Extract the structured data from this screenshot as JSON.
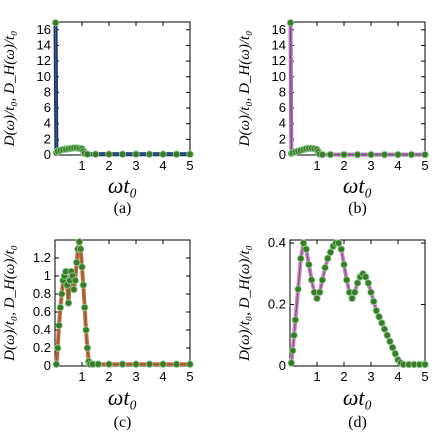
{
  "chart_data": [
    {
      "type": "scatter",
      "caption": "(a)",
      "ylabel": "D(ω)/t₀, D_H(ω)/t₀",
      "xlabel": "ωt₀",
      "xlim": [
        0,
        5
      ],
      "ylim": [
        0,
        17
      ],
      "xticks": [
        "1",
        "2",
        "3",
        "4",
        "5"
      ],
      "yticks": [
        "0",
        "2",
        "4",
        "6",
        "8",
        "10",
        "12",
        "14",
        "16"
      ],
      "ytick_values": [
        0,
        2,
        4,
        6,
        8,
        10,
        12,
        14,
        16
      ],
      "colors": {
        "line": "#1a2a8a",
        "marker": "#3a7a2a"
      },
      "series": [
        {
          "x": [
            0.02,
            0.05,
            0.1,
            0.2,
            0.3,
            0.4,
            0.5,
            0.6,
            0.7,
            0.8,
            0.9,
            1.0,
            1.05,
            1.1,
            1.2,
            1.5,
            2.0,
            2.5,
            3.0,
            3.5,
            4.0,
            4.5,
            5.0
          ],
          "y": [
            16.9,
            0.3,
            0.5,
            0.6,
            0.7,
            0.75,
            0.8,
            0.85,
            0.9,
            0.9,
            0.85,
            0.8,
            0.5,
            0.2,
            0.1,
            0.1,
            0.1,
            0.1,
            0.1,
            0.1,
            0.1,
            0.1,
            0.1
          ]
        }
      ]
    },
    {
      "type": "scatter",
      "caption": "(b)",
      "ylabel": "D(ω)/t₀, D_H(ω)/t₀",
      "xlabel": "ωt₀",
      "xlim": [
        0,
        5
      ],
      "ylim": [
        0,
        17
      ],
      "xticks": [
        "1",
        "2",
        "3",
        "4",
        "5"
      ],
      "yticks": [
        "0",
        "2",
        "4",
        "6",
        "8",
        "10",
        "12",
        "14",
        "16"
      ],
      "ytick_values": [
        0,
        2,
        4,
        6,
        8,
        10,
        12,
        14,
        16
      ],
      "colors": {
        "line": "#c060d0",
        "marker": "#3a7a2a"
      },
      "series": [
        {
          "x": [
            0.02,
            0.05,
            0.1,
            0.2,
            0.3,
            0.4,
            0.5,
            0.6,
            0.7,
            0.8,
            0.9,
            1.0,
            1.05,
            1.1,
            1.2,
            1.5,
            2.0,
            2.5,
            3.0,
            3.5,
            4.0,
            4.5,
            5.0
          ],
          "y": [
            16.9,
            0.2,
            0.3,
            0.4,
            0.5,
            0.6,
            0.7,
            0.8,
            0.85,
            0.85,
            0.8,
            0.7,
            0.4,
            0.1,
            0.05,
            0.05,
            0.05,
            0.05,
            0.05,
            0.05,
            0.05,
            0.05,
            0.05
          ]
        }
      ]
    },
    {
      "type": "scatter",
      "caption": "(c)",
      "ylabel": "D(ω)/t₀, D_H(ω)/t₀",
      "xlabel": "ωt₀",
      "xlim": [
        0,
        5
      ],
      "ylim": [
        0,
        1.4
      ],
      "xticks": [
        "1",
        "2",
        "3",
        "4",
        "5"
      ],
      "yticks": [
        "0",
        "0.2",
        "0.4",
        "0.6",
        "0.8",
        "1",
        "1.2"
      ],
      "ytick_values": [
        0,
        0.2,
        0.4,
        0.6,
        0.8,
        1.0,
        1.2
      ],
      "colors": {
        "line": "#e06040",
        "marker": "#3a7a2a"
      },
      "series": [
        {
          "x": [
            0.05,
            0.1,
            0.15,
            0.2,
            0.25,
            0.3,
            0.35,
            0.4,
            0.45,
            0.5,
            0.55,
            0.6,
            0.65,
            0.7,
            0.75,
            0.8,
            0.85,
            0.9,
            0.95,
            1.0,
            1.05,
            1.1,
            1.15,
            1.2,
            1.25,
            1.3,
            1.4,
            1.6,
            2.0,
            2.5,
            3.0,
            3.5,
            4.0,
            4.5,
            5.0
          ],
          "y": [
            0.02,
            0.2,
            0.45,
            0.65,
            0.8,
            0.95,
            1.0,
            1.05,
            0.9,
            0.7,
            0.95,
            1.05,
            1.0,
            0.85,
            0.95,
            1.15,
            1.3,
            1.38,
            1.3,
            1.1,
            0.9,
            0.65,
            0.4,
            0.2,
            0.05,
            0.02,
            0.02,
            0.02,
            0.02,
            0.02,
            0.02,
            0.02,
            0.02,
            0.02,
            0.02
          ]
        }
      ]
    },
    {
      "type": "scatter",
      "caption": "(d)",
      "ylabel": "D(ω)/t₀, D_H(ω)/t₀",
      "xlabel": "ωt₀",
      "xlim": [
        0,
        5
      ],
      "ylim": [
        0,
        0.41
      ],
      "xticks": [
        "1",
        "2",
        "3",
        "4",
        "5"
      ],
      "yticks": [
        "0",
        "0.2",
        "0.4"
      ],
      "ytick_values": [
        0,
        0.2,
        0.4
      ],
      "colors": {
        "line": "#e070e0",
        "marker": "#3a7a2a"
      },
      "series": [
        {
          "x": [
            0.05,
            0.1,
            0.15,
            0.2,
            0.3,
            0.4,
            0.5,
            0.6,
            0.7,
            0.8,
            0.9,
            1.0,
            1.1,
            1.2,
            1.3,
            1.4,
            1.5,
            1.6,
            1.7,
            1.8,
            1.9,
            2.0,
            2.1,
            2.2,
            2.3,
            2.4,
            2.5,
            2.6,
            2.7,
            2.8,
            2.9,
            3.0,
            3.1,
            3.2,
            3.3,
            3.4,
            3.5,
            3.6,
            3.7,
            3.8,
            3.9,
            4.0,
            4.1,
            4.2,
            4.4,
            4.6,
            4.8,
            5.0
          ],
          "y": [
            0.01,
            0.05,
            0.1,
            0.15,
            0.25,
            0.35,
            0.4,
            0.38,
            0.33,
            0.28,
            0.24,
            0.22,
            0.24,
            0.28,
            0.32,
            0.35,
            0.37,
            0.39,
            0.4,
            0.4,
            0.38,
            0.33,
            0.28,
            0.24,
            0.22,
            0.24,
            0.27,
            0.29,
            0.3,
            0.29,
            0.27,
            0.24,
            0.21,
            0.18,
            0.16,
            0.14,
            0.12,
            0.1,
            0.08,
            0.06,
            0.04,
            0.02,
            0.01,
            0.005,
            0.005,
            0.005,
            0.005,
            0.005
          ]
        }
      ]
    }
  ]
}
